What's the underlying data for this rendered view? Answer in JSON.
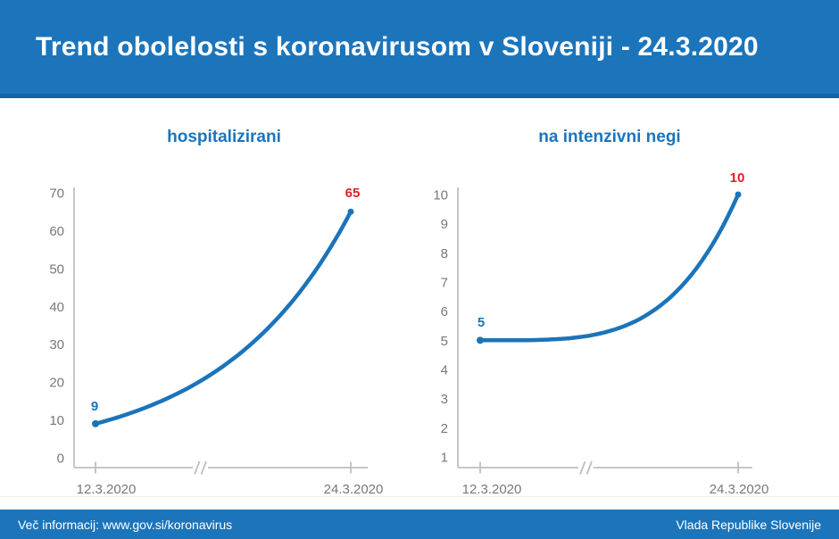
{
  "header": {
    "title": "Trend obolelosti s koronavirusom v Sloveniji - 24.3.2020"
  },
  "footer": {
    "info": "Več informacij: www.gov.si/koronavirus",
    "org": "Vlada Republike Slovenije"
  },
  "colors": {
    "band_blue": "#1C75BB",
    "band_blue_dark": "#1465A4",
    "line_blue": "#1B74BA",
    "accent_red": "#E11D25",
    "label_gray": "#77787B",
    "axis_gray": "#BDBFC1"
  },
  "chart_data": [
    {
      "type": "line",
      "title": "hospitalizirani",
      "x": [
        "12.3.2020",
        "24.3.2020"
      ],
      "values": [
        9,
        65
      ],
      "start_label": "9",
      "end_label": "65",
      "y_ticks": [
        0,
        10,
        20,
        30,
        40,
        50,
        60,
        70
      ],
      "ylim": [
        0,
        70
      ],
      "x_axis_break": true,
      "grid": false,
      "legend": false
    },
    {
      "type": "line",
      "title": "na intenzivni negi",
      "x": [
        "12.3.2020",
        "24.3.2020"
      ],
      "values": [
        5,
        10
      ],
      "start_label": "5",
      "end_label": "10",
      "y_ticks": [
        1,
        2,
        3,
        4,
        5,
        6,
        7,
        8,
        9,
        10
      ],
      "ylim": [
        1,
        10
      ],
      "x_axis_break": true,
      "grid": false,
      "legend": false
    }
  ]
}
